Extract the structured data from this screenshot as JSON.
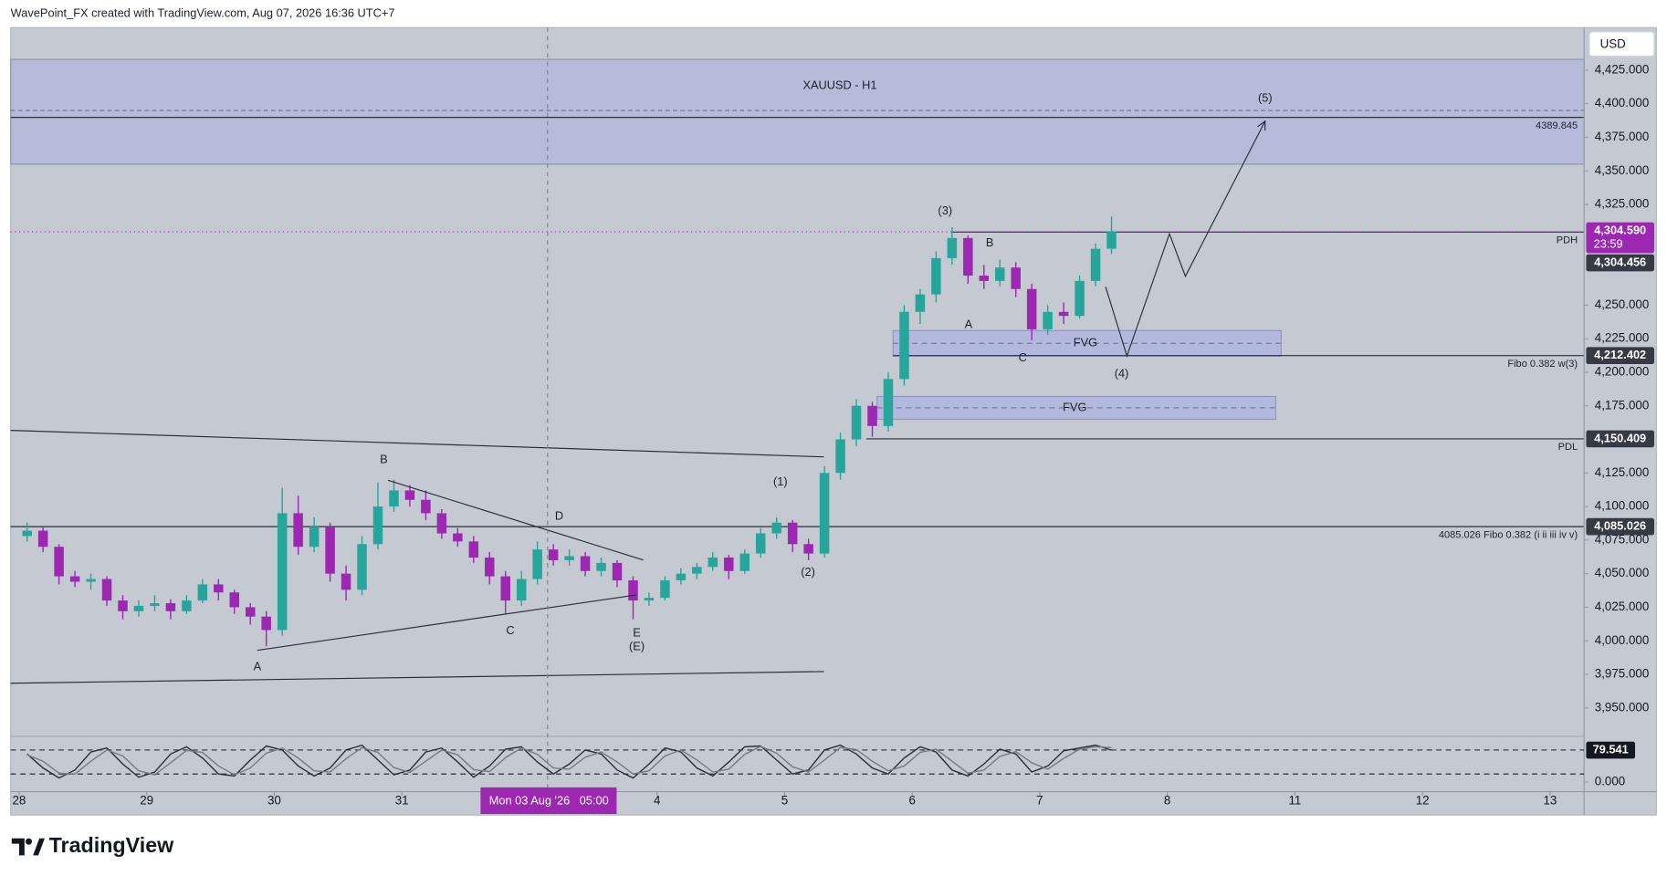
{
  "header": {
    "credit": "WavePoint_FX created with TradingView.com, Aug 07, 2026 16:36 UTC+7",
    "currency": "USD",
    "brand": "TradingView"
  },
  "chart_data": {
    "type": "candlestick",
    "title": "XAUUSD - H1",
    "up_color": "#26a69a",
    "down_color": "#9c27b0",
    "candles": [
      [
        4078,
        4088,
        4074,
        4082
      ],
      [
        4082,
        4085,
        4066,
        4070
      ],
      [
        4070,
        4072,
        4042,
        4048
      ],
      [
        4048,
        4052,
        4040,
        4044
      ],
      [
        4044,
        4050,
        4038,
        4046
      ],
      [
        4046,
        4048,
        4026,
        4030
      ],
      [
        4030,
        4034,
        4016,
        4022
      ],
      [
        4022,
        4030,
        4018,
        4026
      ],
      [
        4026,
        4034,
        4022,
        4028
      ],
      [
        4028,
        4031,
        4016,
        4022
      ],
      [
        4022,
        4034,
        4020,
        4030
      ],
      [
        4030,
        4046,
        4028,
        4042
      ],
      [
        4042,
        4046,
        4030,
        4036
      ],
      [
        4036,
        4038,
        4020,
        4025
      ],
      [
        4025,
        4028,
        4012,
        4018
      ],
      [
        4018,
        4022,
        3996,
        4008
      ],
      [
        4008,
        4114,
        4004,
        4095
      ],
      [
        4095,
        4108,
        4064,
        4070
      ],
      [
        4070,
        4092,
        4066,
        4085
      ],
      [
        4085,
        4088,
        4044,
        4050
      ],
      [
        4050,
        4056,
        4030,
        4038
      ],
      [
        4038,
        4078,
        4034,
        4072
      ],
      [
        4072,
        4118,
        4068,
        4100
      ],
      [
        4100,
        4120,
        4096,
        4112
      ],
      [
        4112,
        4116,
        4100,
        4105
      ],
      [
        4105,
        4112,
        4090,
        4095
      ],
      [
        4095,
        4098,
        4076,
        4080
      ],
      [
        4080,
        4084,
        4070,
        4074
      ],
      [
        4074,
        4078,
        4058,
        4062
      ],
      [
        4062,
        4066,
        4042,
        4048
      ],
      [
        4048,
        4052,
        4020,
        4030
      ],
      [
        4030,
        4052,
        4026,
        4046
      ],
      [
        4046,
        4074,
        4042,
        4068
      ],
      [
        4068,
        4072,
        4056,
        4060
      ],
      [
        4060,
        4068,
        4056,
        4063
      ],
      [
        4063,
        4066,
        4048,
        4052
      ],
      [
        4052,
        4062,
        4048,
        4058
      ],
      [
        4058,
        4060,
        4040,
        4045
      ],
      [
        4045,
        4048,
        4016,
        4030
      ],
      [
        4030,
        4036,
        4026,
        4032
      ],
      [
        4032,
        4048,
        4030,
        4045
      ],
      [
        4045,
        4054,
        4042,
        4050
      ],
      [
        4050,
        4058,
        4046,
        4055
      ],
      [
        4055,
        4066,
        4052,
        4062
      ],
      [
        4062,
        4064,
        4046,
        4052
      ],
      [
        4052,
        4068,
        4050,
        4065
      ],
      [
        4065,
        4084,
        4062,
        4080
      ],
      [
        4080,
        4092,
        4076,
        4088
      ],
      [
        4088,
        4090,
        4066,
        4072
      ],
      [
        4072,
        4076,
        4060,
        4065
      ],
      [
        4065,
        4130,
        4062,
        4125
      ],
      [
        4125,
        4155,
        4120,
        4150
      ],
      [
        4150,
        4180,
        4145,
        4175
      ],
      [
        4175,
        4178,
        4152,
        4160
      ],
      [
        4160,
        4200,
        4156,
        4195
      ],
      [
        4195,
        4250,
        4190,
        4245
      ],
      [
        4245,
        4262,
        4236,
        4258
      ],
      [
        4258,
        4290,
        4252,
        4285
      ],
      [
        4285,
        4308,
        4280,
        4300
      ],
      [
        4300,
        4302,
        4266,
        4272
      ],
      [
        4272,
        4280,
        4262,
        4268
      ],
      [
        4268,
        4284,
        4264,
        4278
      ],
      [
        4278,
        4282,
        4256,
        4262
      ],
      [
        4262,
        4266,
        4224,
        4232
      ],
      [
        4232,
        4250,
        4228,
        4245
      ],
      [
        4245,
        4252,
        4236,
        4242
      ],
      [
        4242,
        4272,
        4240,
        4268
      ],
      [
        4268,
        4296,
        4264,
        4292
      ],
      [
        4292,
        4316,
        4288,
        4304.59
      ]
    ],
    "ylim": [
      3928.8,
      4456.7
    ],
    "yticks": [
      {
        "value": 4425,
        "label": "4,425.000"
      },
      {
        "value": 4400,
        "label": "4,400.000"
      },
      {
        "value": 4375,
        "label": "4,375.000"
      },
      {
        "value": 4350,
        "label": "4,350.000"
      },
      {
        "value": 4325,
        "label": "4,325.000"
      },
      {
        "value": 4250,
        "label": "4,250.000"
      },
      {
        "value": 4225,
        "label": "4,225.000"
      },
      {
        "value": 4200,
        "label": "4,200.000"
      },
      {
        "value": 4175,
        "label": "4,175.000"
      },
      {
        "value": 4125,
        "label": "4,125.000"
      },
      {
        "value": 4100,
        "label": "4,100.000"
      },
      {
        "value": 4075,
        "label": "4,075.000"
      },
      {
        "value": 4050,
        "label": "4,050.000"
      },
      {
        "value": 4025,
        "label": "4,025.000"
      },
      {
        "value": 4000,
        "label": "4,000.000"
      },
      {
        "value": 3975,
        "label": "3,975.000"
      },
      {
        "value": 3950,
        "label": "3,950.000"
      }
    ],
    "xlim": [
      -0.53,
      98.13
    ],
    "xticks": [
      {
        "value": 0,
        "label": "28"
      },
      {
        "value": 8,
        "label": "29"
      },
      {
        "value": 16,
        "label": "30"
      },
      {
        "value": 24,
        "label": "31"
      },
      {
        "value": 40,
        "label": "4"
      },
      {
        "value": 48,
        "label": "5"
      },
      {
        "value": 56,
        "label": "6"
      },
      {
        "value": 64,
        "label": "7"
      },
      {
        "value": 72,
        "label": "8"
      },
      {
        "value": 80,
        "label": "11"
      },
      {
        "value": 88,
        "label": "12"
      },
      {
        "value": 96,
        "label": "13"
      }
    ],
    "crosshair": {
      "date": "Mon 03 Aug '26",
      "time": "05:00"
    },
    "last": {
      "value": 4304.59,
      "label": "4,304.590",
      "countdown": "23:59",
      "color": "#9c27b0"
    },
    "range_box": {
      "top": 4433,
      "bottom": 4355,
      "mid": 4395
    },
    "levels": [
      {
        "value": 4389.845,
        "text": "4389.845"
      },
      {
        "value": 4304.456,
        "text": "PDH",
        "tag": "4,304.456"
      },
      {
        "value": 4212.402,
        "text": "Fibo 0.382 w(3)",
        "tag": "4,212.402"
      },
      {
        "value": 4150.409,
        "text": "PDL",
        "tag": "4,150.409"
      },
      {
        "value": 4085.026,
        "text": "4085.026 Fibo 0.382 (i ii iii iv v)",
        "tag": "4,085.026"
      }
    ],
    "zones": [
      {
        "text": "FVG",
        "top": 4231,
        "bottom": 4212
      },
      {
        "text": "FVG",
        "top": 4182,
        "bottom": 4165
      }
    ],
    "annotations": [
      "B",
      "D",
      "A",
      "C",
      "E",
      "(E)",
      "(1)",
      "(2)",
      "(3)",
      "B",
      "A",
      "C",
      "(4)",
      "(5)"
    ]
  },
  "oscillator": {
    "type": "line",
    "ylim": [
      -24,
      114
    ],
    "yticks": [
      {
        "value": 0,
        "label": "0.000"
      }
    ],
    "levels": [
      80,
      20
    ],
    "series": [
      {
        "color": "#2a2e39",
        "values": [
          70,
          35,
          10,
          30,
          75,
          85,
          45,
          12,
          25,
          70,
          88,
          60,
          20,
          15,
          55,
          90,
          80,
          40,
          15,
          35,
          80,
          92,
          55,
          18,
          30,
          75,
          85,
          50,
          12,
          40,
          82,
          88,
          50,
          20,
          45,
          80,
          70,
          30,
          10,
          45,
          85,
          75,
          35,
          15,
          50,
          88,
          90,
          55,
          20,
          30,
          80,
          92,
          70,
          35,
          20,
          60,
          88,
          75,
          30,
          15,
          45,
          82,
          70,
          25,
          40,
          78,
          85,
          92,
          79.541
        ]
      },
      {
        "color": "#787b86",
        "values": [
          68,
          52,
          22,
          20,
          52,
          80,
          65,
          28,
          18,
          48,
          79,
          74,
          40,
          18,
          35,
          72,
          85,
          60,
          28,
          25,
          58,
          86,
          74,
          36,
          24,
          52,
          80,
          68,
          31,
          26,
          61,
          85,
          69,
          35,
          32,
          62,
          75,
          50,
          20,
          28,
          65,
          80,
          55,
          25,
          32,
          69,
          89,
          72,
          38,
          25,
          55,
          86,
          81,
          52,
          28,
          40,
          74,
          82,
          52,
          22,
          30,
          64,
          76,
          48,
          32,
          59,
          82,
          88,
          86
        ]
      }
    ],
    "last": {
      "value": 79.541
    }
  }
}
